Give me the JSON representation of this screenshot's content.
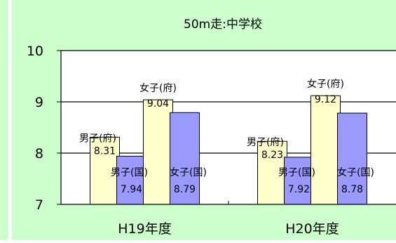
{
  "chart_data": {
    "type": "bar",
    "title": "50m走:中学校",
    "categories": [
      "H19年度",
      "H20年度"
    ],
    "series": [
      {
        "name": "男子(府)",
        "values": [
          8.31,
          8.23
        ],
        "color": "#ffffcc"
      },
      {
        "name": "男子(国)",
        "values": [
          7.94,
          7.92
        ],
        "color": "#9999ff"
      },
      {
        "name": "女子(府)",
        "values": [
          9.04,
          9.12
        ],
        "color": "#ffffcc"
      },
      {
        "name": "女子(国)",
        "values": [
          8.79,
          8.78
        ],
        "color": "#9999ff"
      }
    ],
    "y_ticks": [
      "7",
      "8",
      "9",
      "10"
    ],
    "ylim": [
      7,
      10
    ],
    "grid": true,
    "legend": "none (series names shown as data labels)",
    "colors": {
      "background": "#ccffcc",
      "left_strip": "#ccffcc",
      "plot_bg": "#ffffff",
      "bar_outline": "#000000"
    }
  }
}
